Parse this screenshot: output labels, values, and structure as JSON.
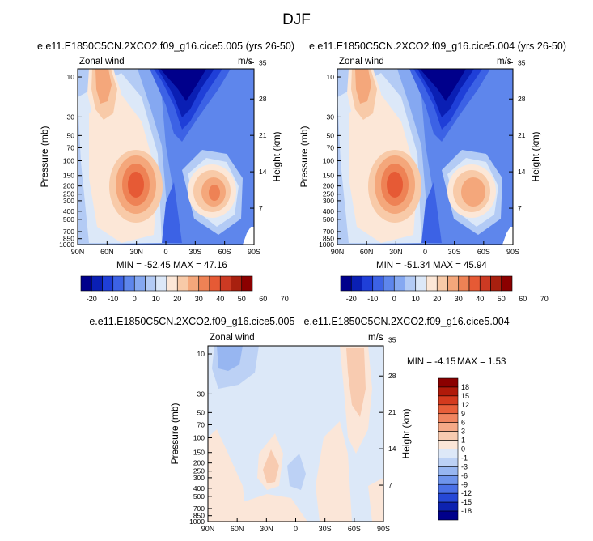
{
  "figure": {
    "title": "DJF",
    "legend_units_hidden": ""
  },
  "chart_data": [
    {
      "type": "contour",
      "title": "e.e11.E1850C5CN.2XCO2.f09_g16.cice5.005 (yrs 26-50)",
      "left_label": "Zonal wind",
      "right_label": "m/s",
      "ylabel": "Pressure (mb)",
      "ylabel_right": "Height (km)",
      "x_ticks": [
        "90N",
        "60N",
        "30N",
        "0",
        "30S",
        "60S",
        "90S"
      ],
      "x_values": [
        90,
        60,
        30,
        0,
        -30,
        -60,
        -90
      ],
      "pressure_ticks": [
        10,
        30,
        50,
        70,
        100,
        150,
        200,
        250,
        300,
        400,
        500,
        700,
        850,
        1000
      ],
      "height_ticks": [
        35,
        28,
        21,
        14,
        7
      ],
      "min_max": "MIN = -52.45  MAX = 47.16",
      "min": -52.45,
      "max": 47.16,
      "colorbar": {
        "levels": [
          -25,
          -20,
          -15,
          -10,
          -5,
          0,
          5,
          10,
          15,
          20,
          25,
          30,
          35,
          40,
          45,
          50,
          55,
          60,
          65,
          70
        ],
        "labels": [
          "-20",
          "-10",
          "0",
          "10",
          "20",
          "30",
          "40",
          "50",
          "60",
          "70"
        ],
        "colors": [
          "#00008b",
          "#0a1fb4",
          "#1f3fd8",
          "#3c62e5",
          "#5e86ec",
          "#85a8f1",
          "#b3cbf5",
          "#dce8f8",
          "#fce7d7",
          "#f8caa8",
          "#f4a77b",
          "#ee8255",
          "#e65a35",
          "#cc3a23",
          "#a8200f",
          "#8b0000"
        ]
      }
    },
    {
      "type": "contour",
      "title": "e.e11.E1850C5CN.2XCO2.f09_g16.cice5.004 (yrs 26-50)",
      "left_label": "Zonal wind",
      "right_label": "m/s",
      "ylabel": "Pressure (mb)",
      "ylabel_right": "Height (km)",
      "x_ticks": [
        "90N",
        "60N",
        "30N",
        "0",
        "30S",
        "60S",
        "90S"
      ],
      "x_values": [
        90,
        60,
        30,
        0,
        -30,
        -60,
        -90
      ],
      "pressure_ticks": [
        10,
        30,
        50,
        70,
        100,
        150,
        200,
        250,
        300,
        400,
        500,
        700,
        850,
        1000
      ],
      "height_ticks": [
        35,
        28,
        21,
        14,
        7
      ],
      "min_max": "MIN = -51.34  MAX = 45.94",
      "min": -51.34,
      "max": 45.94,
      "colorbar": {
        "levels": [
          -25,
          -20,
          -15,
          -10,
          -5,
          0,
          5,
          10,
          15,
          20,
          25,
          30,
          35,
          40,
          45,
          50,
          55,
          60,
          65,
          70
        ],
        "labels": [
          "-20",
          "-10",
          "0",
          "10",
          "20",
          "30",
          "40",
          "50",
          "60",
          "70"
        ],
        "colors": [
          "#00008b",
          "#0a1fb4",
          "#1f3fd8",
          "#3c62e5",
          "#5e86ec",
          "#85a8f1",
          "#b3cbf5",
          "#dce8f8",
          "#fce7d7",
          "#f8caa8",
          "#f4a77b",
          "#ee8255",
          "#e65a35",
          "#cc3a23",
          "#a8200f",
          "#8b0000"
        ]
      }
    },
    {
      "type": "contour",
      "title": "e.e11.E1850C5CN.2XCO2.f09_g16.cice5.005 - e.e11.E1850C5CN.2XCO2.f09_g16.cice5.004",
      "left_label": "Zonal wind",
      "right_label": "m/s",
      "ylabel": "Pressure (mb)",
      "ylabel_right": "Height (km)",
      "x_ticks": [
        "90N",
        "60N",
        "30N",
        "0",
        "30S",
        "60S",
        "90S"
      ],
      "x_values": [
        90,
        60,
        30,
        0,
        -30,
        -60,
        -90
      ],
      "pressure_ticks": [
        10,
        30,
        50,
        70,
        100,
        150,
        200,
        250,
        300,
        400,
        500,
        700,
        850,
        1000
      ],
      "height_ticks": [
        35,
        28,
        21,
        14,
        7
      ],
      "min_label": "MIN = -4.15",
      "max_label": "MAX =  1.53",
      "min": -4.15,
      "max": 1.53,
      "colorbar": {
        "labels": [
          "18",
          "15",
          "12",
          "9",
          "6",
          "3",
          "1",
          "0",
          "-1",
          "-3",
          "-6",
          "-9",
          "-12",
          "-15",
          "-18"
        ],
        "colors": [
          "#8b0000",
          "#b01a0a",
          "#d43a1e",
          "#e85f3a",
          "#f08560",
          "#f5a987",
          "#f8cbb0",
          "#fbe6d8",
          "#dde8f8",
          "#bcd1f5",
          "#97b6f1",
          "#6e94ec",
          "#4a70e6",
          "#2648d6",
          "#0d22b0",
          "#00008b"
        ]
      }
    }
  ]
}
